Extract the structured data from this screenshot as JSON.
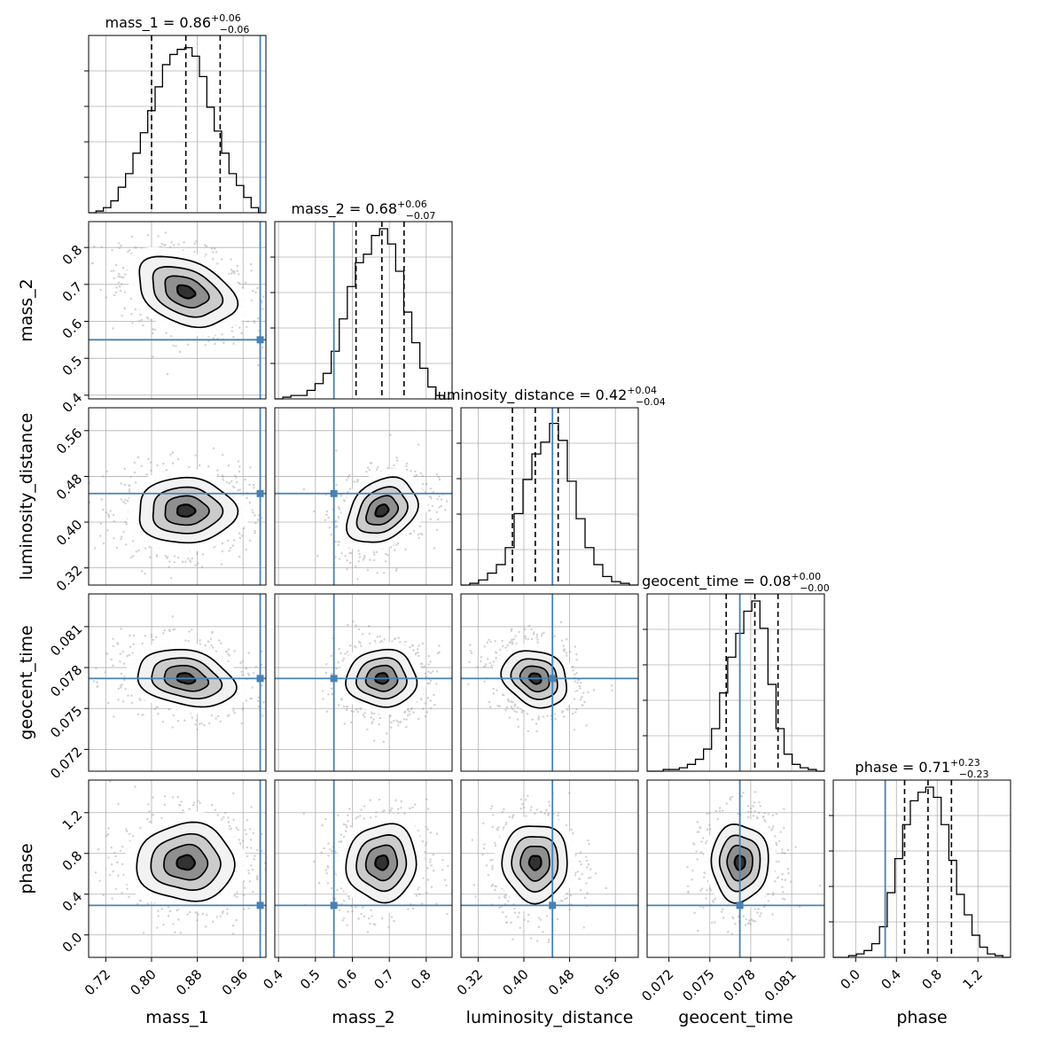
{
  "chart_data": {
    "type": "corner",
    "parameters": [
      {
        "name": "mass_1",
        "axis_label": "mass_1",
        "median": 0.86,
        "plus": "+0.06",
        "minus": "−0.06",
        "median_text": "0.86",
        "range": [
          0.69,
          1.0
        ],
        "ticks": [
          0.72,
          0.8,
          0.88,
          0.96
        ],
        "tick_labels": [
          "0.72",
          "0.80",
          "0.88",
          "0.96"
        ],
        "q_lo": 0.8,
        "q_hi": 0.92,
        "truth": 0.99,
        "sd": 0.045,
        "hist": [
          0.0,
          0.01,
          0.03,
          0.07,
          0.15,
          0.23,
          0.35,
          0.47,
          0.6,
          0.74,
          0.87,
          0.93,
          0.96,
          0.97,
          0.92,
          0.8,
          0.62,
          0.48,
          0.35,
          0.23,
          0.16,
          0.09,
          0.03,
          0.0
        ]
      },
      {
        "name": "mass_2",
        "axis_label": "mass_2",
        "median": 0.68,
        "plus": "+0.06",
        "minus": "−0.07",
        "median_text": "0.68",
        "range": [
          0.39,
          0.87
        ],
        "ticks": [
          0.4,
          0.5,
          0.6,
          0.7,
          0.8
        ],
        "tick_labels": [
          "0.4",
          "0.5",
          "0.6",
          "0.7",
          "0.8"
        ],
        "q_lo": 0.61,
        "q_hi": 0.74,
        "truth": 0.55,
        "sd": 0.05,
        "hist": [
          0.0,
          0.01,
          0.02,
          0.02,
          0.05,
          0.09,
          0.15,
          0.28,
          0.47,
          0.66,
          0.8,
          0.85,
          0.96,
          1.0,
          0.91,
          0.75,
          0.51,
          0.33,
          0.18,
          0.07,
          0.02,
          0.0
        ]
      },
      {
        "name": "luminosity_distance",
        "axis_label": "luminosity_distance",
        "median": 0.42,
        "plus": "+0.04",
        "minus": "−0.04",
        "median_text": "0.42",
        "range": [
          0.29,
          0.6
        ],
        "ticks": [
          0.32,
          0.4,
          0.48,
          0.56
        ],
        "tick_labels": [
          "0.32",
          "0.40",
          "0.48",
          "0.56"
        ],
        "q_lo": 0.38,
        "q_hi": 0.46,
        "truth": 0.45,
        "sd": 0.03,
        "hist": [
          0.0,
          0.01,
          0.03,
          0.07,
          0.12,
          0.22,
          0.42,
          0.62,
          0.77,
          0.84,
          0.95,
          0.85,
          0.61,
          0.39,
          0.22,
          0.12,
          0.05,
          0.02,
          0.01,
          0.0
        ]
      },
      {
        "name": "geocent_time",
        "axis_label": "geocent_time",
        "median": 0.08,
        "plus": "+0.00",
        "minus": "−0.00",
        "median_text": "0.08",
        "range": [
          0.0704,
          0.0834
        ],
        "ticks": [
          0.072,
          0.075,
          0.078,
          0.081
        ],
        "tick_labels": [
          "0.072",
          "0.075",
          "0.078",
          "0.081"
        ],
        "q_lo": 0.0762,
        "q_hi": 0.0783,
        "truth": 0.0772,
        "sd": 0.0011,
        "hist": [
          0.0,
          0.0,
          0.01,
          0.01,
          0.02,
          0.04,
          0.07,
          0.13,
          0.25,
          0.46,
          0.67,
          0.81,
          0.94,
          1.0,
          0.84,
          0.51,
          0.25,
          0.1,
          0.04,
          0.02,
          0.01,
          0.0
        ]
      },
      {
        "name": "phase",
        "axis_label": "phase",
        "median": 0.71,
        "plus": "+0.23",
        "minus": "−0.23",
        "median_text": "0.71",
        "range": [
          -0.22,
          1.52
        ],
        "ticks": [
          0.0,
          0.4,
          0.8,
          1.2
        ],
        "tick_labels": [
          "0.0",
          "0.4",
          "0.8",
          "1.2"
        ],
        "q_lo": 0.48,
        "q_hi": 0.94,
        "truth": 0.29,
        "sd": 0.2,
        "hist": [
          0.0,
          0.0,
          0.01,
          0.02,
          0.04,
          0.08,
          0.18,
          0.38,
          0.58,
          0.78,
          0.92,
          0.97,
          1.0,
          0.94,
          0.78,
          0.57,
          0.37,
          0.25,
          0.13,
          0.06,
          0.02,
          0.01,
          0.0
        ]
      }
    ],
    "pair_peaks": {
      "1-0": [
        0.86,
        0.68,
        -0.35
      ],
      "2-0": [
        0.86,
        0.42,
        0.0
      ],
      "2-1": [
        0.68,
        0.42,
        0.3
      ],
      "3-0": [
        0.86,
        0.0772,
        -0.25
      ],
      "3-1": [
        0.68,
        0.0772,
        0.0
      ],
      "3-2": [
        0.42,
        0.0772,
        -0.2
      ],
      "4-0": [
        0.86,
        0.71,
        0.0
      ],
      "4-1": [
        0.68,
        0.71,
        0.05
      ],
      "4-2": [
        0.42,
        0.71,
        0.0
      ],
      "4-3": [
        0.0772,
        0.71,
        0.0
      ]
    },
    "colors": {
      "truth": "#4682b4",
      "contour": "#000000",
      "grid": "#b0b0b0",
      "scatter": "#9a9a9a"
    },
    "grid": true,
    "title_format": "{name} = {median}"
  }
}
